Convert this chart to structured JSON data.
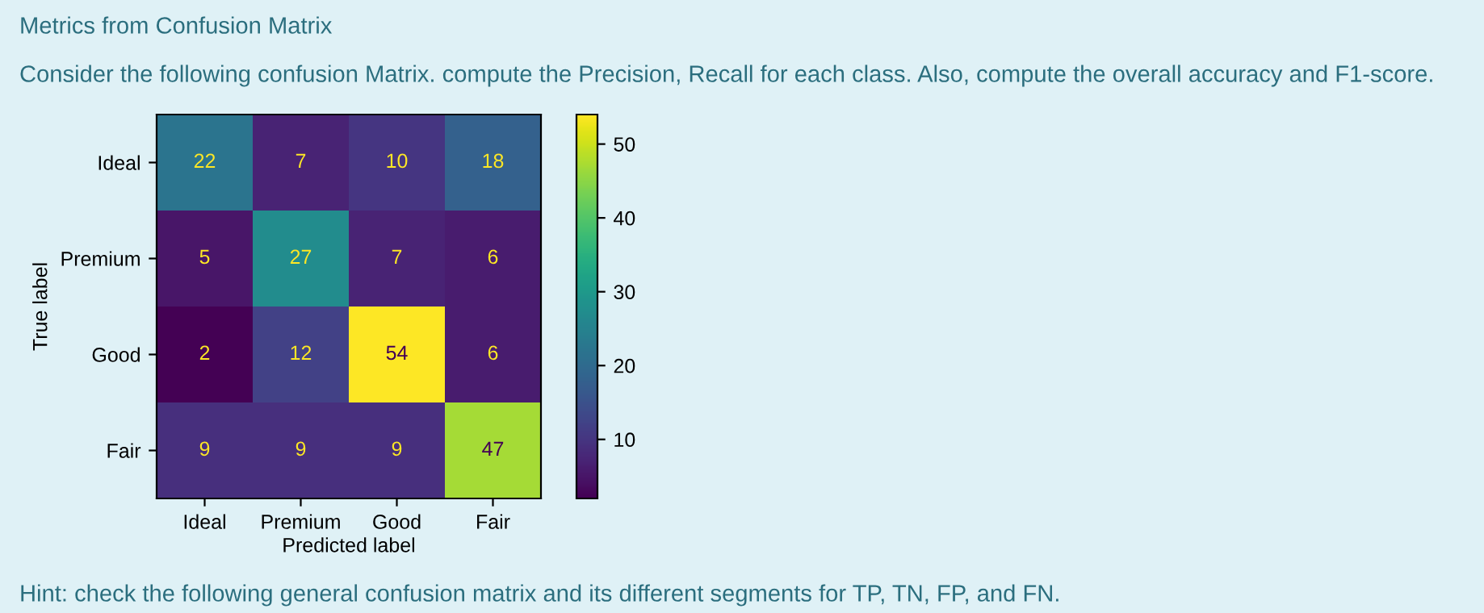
{
  "chart_data": {
    "type": "heatmap",
    "title": "Metrics from Confusion Matrix",
    "subtitle": "Consider the following confusion Matrix. compute the Precision, Recall for each class. Also, compute the overall accuracy and F1-score.",
    "xlabel": "Predicted label",
    "ylabel": "True label",
    "categories": [
      "Ideal",
      "Premium",
      "Good",
      "Fair"
    ],
    "y_categories": [
      "Ideal",
      "Premium",
      "Good",
      "Fair"
    ],
    "cells": [
      [
        22,
        7,
        10,
        18
      ],
      [
        5,
        27,
        7,
        6
      ],
      [
        2,
        12,
        54,
        6
      ],
      [
        9,
        9,
        9,
        47
      ]
    ],
    "clim": [
      2,
      54
    ],
    "cticks": [
      10,
      20,
      30,
      40,
      50
    ],
    "data_labels": true,
    "annotations": [
      "Hint: check the following general confusion matrix and its different segments for TP, TN, FP, and FN."
    ]
  }
}
